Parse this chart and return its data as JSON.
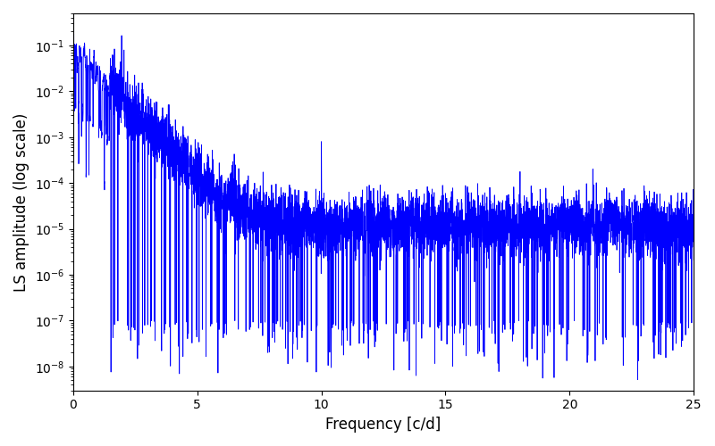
{
  "xlabel": "Frequency [c/d]",
  "ylabel": "LS amplitude (log scale)",
  "xlim": [
    0,
    25
  ],
  "ylim": [
    3e-09,
    0.5
  ],
  "line_color": "blue",
  "line_width": 0.6,
  "seed": 12345,
  "n_points": 5000,
  "freq_max": 25.0,
  "background_color": "white",
  "figsize": [
    8.0,
    5.0
  ],
  "dpi": 100
}
